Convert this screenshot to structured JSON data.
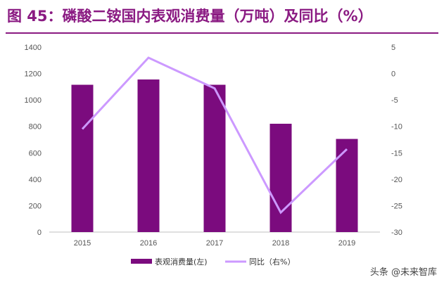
{
  "title": "图 45：磷酸二铵国内表观消费量（万吨）及同比（%）",
  "watermark": "头条 @未来智库",
  "colors": {
    "bar": "#7b0b7e",
    "line": "#cc99ff",
    "title": "#8a1a82"
  },
  "chart_data": {
    "type": "bar",
    "categories": [
      "2015",
      "2016",
      "2017",
      "2018",
      "2019"
    ],
    "series": [
      {
        "name": "表观消费量(左)",
        "type": "bar",
        "axis": "left",
        "values": [
          1115,
          1155,
          1115,
          820,
          705
        ]
      },
      {
        "name": "同比（右%）",
        "type": "line",
        "axis": "right",
        "values": [
          -10.5,
          3.0,
          -2.8,
          -26.3,
          -14.3
        ]
      }
    ],
    "y_left": {
      "ylim": [
        0,
        1400
      ],
      "ticks": [
        "0",
        "200",
        "400",
        "600",
        "800",
        "1000",
        "1200",
        "1400"
      ]
    },
    "y_right": {
      "ylim": [
        -30,
        5
      ],
      "ticks": [
        "-30",
        "-25",
        "-20",
        "-15",
        "-10",
        "-5",
        "0",
        "5"
      ]
    },
    "grid": false,
    "legend": "bottom"
  }
}
